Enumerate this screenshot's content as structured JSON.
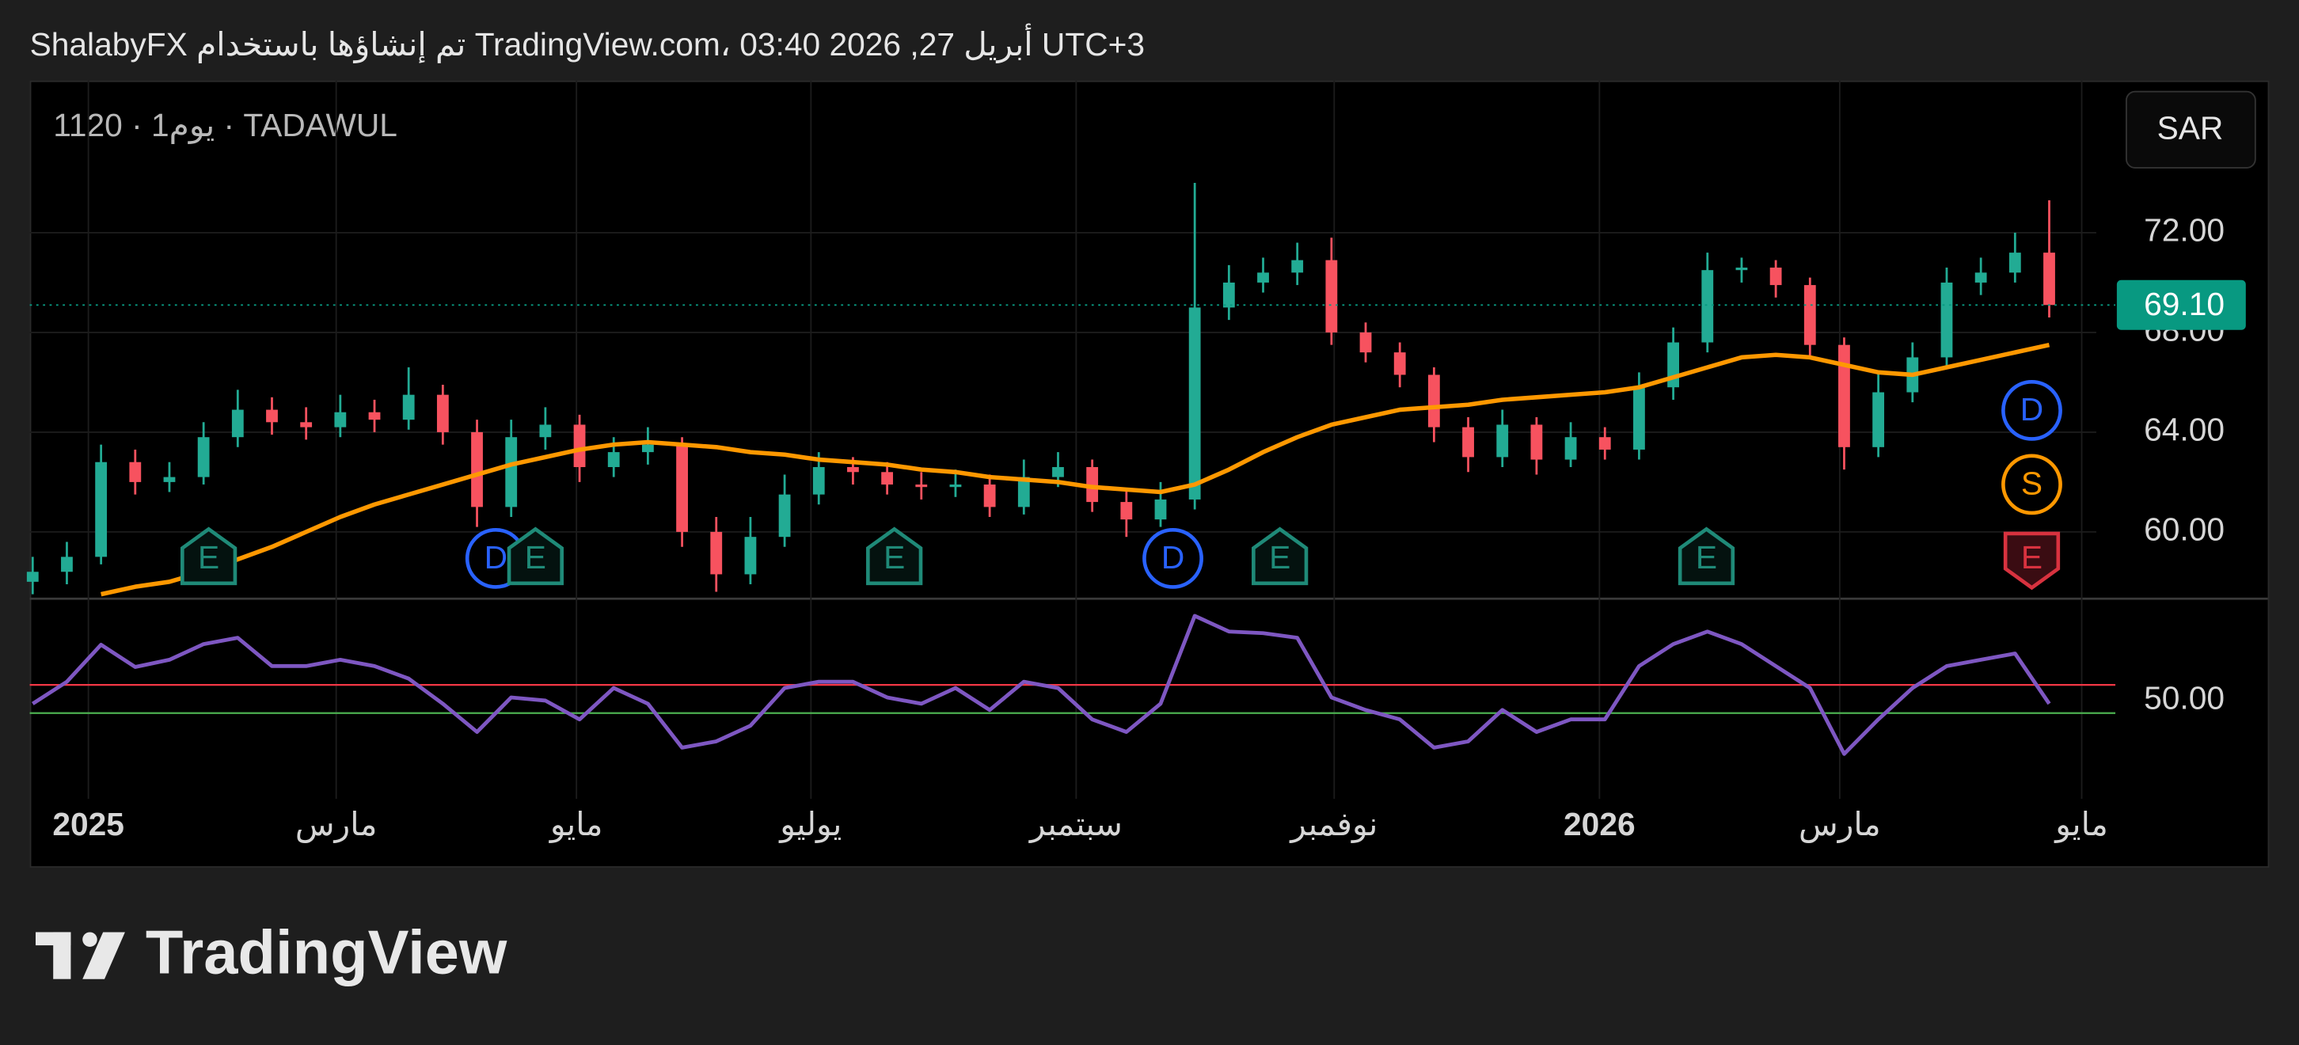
{
  "chart_data": {
    "type": "candlestick",
    "header": "ShalabyFX تم إنشاؤها باستخدام TradingView.com، أبريل 27, 2026 03:40 UTC+3",
    "symbol_label": "1120 · 1يوم · TADAWUL",
    "currency": "SAR",
    "footer": "TradingView",
    "up_color": "#22ab94",
    "down_color": "#f7525f",
    "grid": true,
    "categories": [
      null,
      null,
      null,
      null,
      null,
      null,
      null,
      null,
      null,
      null,
      null,
      null,
      null,
      null,
      null,
      null,
      null,
      null,
      null,
      null,
      null,
      null,
      null,
      null,
      null,
      null,
      null,
      null,
      null,
      null,
      null,
      null,
      null,
      null,
      null,
      null,
      null,
      null,
      null,
      null,
      null,
      null,
      null,
      null,
      null,
      null,
      null,
      null,
      null,
      null,
      null,
      null,
      null,
      null,
      null,
      null,
      null,
      null,
      null,
      null
    ],
    "open": [
      58.0,
      58.4,
      59.0,
      62.8,
      62.0,
      62.2,
      63.8,
      64.9,
      64.4,
      64.2,
      64.8,
      64.5,
      65.5,
      64.0,
      61.0,
      63.8,
      64.3,
      62.6,
      63.2,
      63.5,
      60.0,
      58.3,
      59.8,
      61.5,
      62.6,
      62.4,
      61.9,
      61.8,
      61.9,
      61.0,
      62.2,
      62.6,
      61.2,
      60.5,
      61.3,
      69.0,
      70.0,
      70.4,
      70.9,
      68.0,
      67.2,
      66.3,
      64.2,
      63.0,
      64.3,
      62.9,
      63.8,
      63.3,
      65.8,
      67.6,
      70.5,
      70.6,
      69.9,
      67.5,
      63.4,
      65.6,
      67.0,
      70.0,
      70.4,
      71.2
    ],
    "high": [
      59.0,
      59.6,
      63.5,
      63.3,
      62.8,
      64.4,
      65.7,
      65.4,
      65.0,
      65.5,
      65.3,
      66.6,
      65.9,
      64.5,
      64.5,
      65.0,
      64.7,
      63.8,
      64.2,
      63.8,
      60.6,
      60.6,
      62.3,
      63.2,
      63.0,
      62.8,
      62.4,
      62.5,
      62.3,
      62.9,
      63.2,
      62.9,
      61.7,
      62.0,
      74.0,
      70.7,
      71.0,
      71.6,
      71.8,
      68.4,
      67.6,
      66.6,
      64.6,
      64.9,
      64.6,
      64.4,
      64.2,
      66.4,
      68.2,
      71.2,
      71.0,
      70.9,
      70.2,
      67.8,
      66.4,
      67.6,
      70.6,
      71.0,
      72.0,
      73.3
    ],
    "low": [
      57.5,
      57.9,
      58.7,
      61.5,
      61.6,
      61.9,
      63.4,
      63.9,
      63.7,
      63.8,
      64.0,
      64.1,
      63.5,
      60.2,
      60.6,
      63.3,
      62.0,
      62.2,
      62.7,
      59.4,
      57.6,
      57.9,
      59.4,
      61.1,
      61.9,
      61.5,
      61.3,
      61.4,
      60.6,
      60.7,
      61.8,
      60.8,
      59.8,
      60.2,
      60.9,
      68.5,
      69.6,
      69.9,
      67.5,
      66.8,
      65.8,
      63.6,
      62.4,
      62.6,
      62.3,
      62.6,
      62.9,
      62.9,
      65.3,
      67.2,
      70.0,
      69.4,
      67.0,
      62.5,
      63.0,
      65.2,
      66.6,
      69.5,
      70.0,
      68.6
    ],
    "close": [
      58.4,
      59.0,
      62.8,
      62.0,
      62.2,
      63.8,
      64.9,
      64.4,
      64.2,
      64.8,
      64.5,
      65.5,
      64.0,
      61.0,
      63.8,
      64.3,
      62.6,
      63.2,
      63.5,
      60.0,
      58.3,
      59.8,
      61.5,
      62.6,
      62.4,
      61.9,
      61.8,
      61.9,
      61.0,
      62.2,
      62.6,
      61.2,
      60.5,
      61.3,
      69.0,
      70.0,
      70.4,
      70.9,
      68.0,
      67.2,
      66.3,
      64.2,
      63.0,
      64.3,
      62.9,
      63.8,
      63.3,
      65.8,
      67.6,
      70.5,
      70.6,
      69.9,
      67.5,
      63.4,
      65.6,
      67.0,
      70.0,
      70.4,
      71.2,
      69.1
    ],
    "moving_average": {
      "color": "#ff9800",
      "values": [
        null,
        null,
        57.5,
        57.8,
        58.0,
        58.4,
        58.9,
        59.4,
        60.0,
        60.6,
        61.1,
        61.5,
        61.9,
        62.3,
        62.7,
        63.0,
        63.3,
        63.5,
        63.6,
        63.5,
        63.4,
        63.2,
        63.1,
        62.9,
        62.8,
        62.7,
        62.5,
        62.4,
        62.2,
        62.1,
        62.0,
        61.8,
        61.7,
        61.6,
        61.9,
        62.5,
        63.2,
        63.8,
        64.3,
        64.6,
        64.9,
        65.0,
        65.1,
        65.3,
        65.4,
        65.5,
        65.6,
        65.8,
        66.2,
        66.6,
        67.0,
        67.1,
        67.0,
        66.7,
        66.4,
        66.3,
        66.6,
        66.9,
        67.2,
        67.5
      ]
    },
    "last_price": {
      "value": 69.1,
      "label": "69.10",
      "color": "#089981"
    },
    "ylim": [
      57.35,
      78.1
    ],
    "yticks": [
      {
        "value": 60,
        "label": "60.00"
      },
      {
        "value": 64,
        "label": "64.00"
      },
      {
        "value": 68,
        "label": "68.00"
      },
      {
        "value": 72,
        "label": "72.00"
      }
    ],
    "xticks": [
      {
        "value": 1.63,
        "label": "2025",
        "bold": true
      },
      {
        "value": 8.88,
        "label": "مارس"
      },
      {
        "value": 15.91,
        "label": "مايو"
      },
      {
        "value": 22.77,
        "label": "يوليو"
      },
      {
        "value": 30.53,
        "label": "سبتمبر"
      },
      {
        "value": 38.08,
        "label": "نوفمبر"
      },
      {
        "value": 45.84,
        "label": "2026",
        "bold": true
      },
      {
        "value": 52.87,
        "label": "مارس"
      },
      {
        "value": 59.95,
        "label": "مايو"
      }
    ],
    "rsi": {
      "color": "#7e57c2",
      "values": [
        49,
        56,
        67.8,
        60.7,
        63,
        68,
        70,
        61,
        61,
        63,
        61,
        57,
        49,
        40,
        51,
        50,
        44,
        54,
        49,
        35,
        37,
        42,
        54,
        56,
        56,
        51,
        49,
        54,
        47,
        56,
        54,
        44,
        40,
        49,
        77,
        72,
        71.5,
        70,
        51,
        47,
        44,
        35,
        37,
        47,
        40,
        44,
        44,
        61,
        68,
        72,
        68,
        61,
        54,
        33,
        44,
        54,
        61,
        63,
        65,
        49
      ],
      "ylim": [
        18.7,
        82.7
      ],
      "yticks": [
        {
          "value": 50,
          "label": "50.00"
        }
      ],
      "levels": [
        {
          "value": 55,
          "color": "#f23645"
        },
        {
          "value": 46,
          "color": "#4caf50"
        }
      ]
    },
    "events": [
      {
        "label": "E",
        "x": 5.15,
        "color": "#1f8a78",
        "shape": "flag"
      },
      {
        "label": "D",
        "x": 13.55,
        "color": "#2962ff",
        "shape": "circle"
      },
      {
        "label": "E",
        "x": 14.71,
        "color": "#1f8a78",
        "shape": "flag"
      },
      {
        "label": "E",
        "x": 25.21,
        "color": "#1f8a78",
        "shape": "flag"
      },
      {
        "label": "D",
        "x": 33.36,
        "color": "#2962ff",
        "shape": "circle"
      },
      {
        "label": "E",
        "x": 36.49,
        "color": "#1f8a78",
        "shape": "flag"
      },
      {
        "label": "E",
        "x": 48.97,
        "color": "#1f8a78",
        "shape": "flag"
      },
      {
        "label": "E",
        "x": 58.49,
        "color": "#d8323f",
        "shape": "shield"
      },
      {
        "label": "S",
        "x": 58.49,
        "color": "#ff9800",
        "shape": "circle"
      },
      {
        "label": "D",
        "x": 58.49,
        "color": "#2962ff",
        "shape": "circle"
      }
    ]
  }
}
